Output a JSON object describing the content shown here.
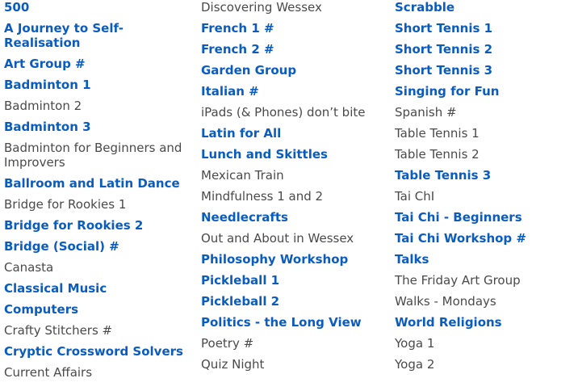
{
  "colors": {
    "link": "#0a5cbf",
    "text": "#4a4a4a"
  },
  "columns": [
    [
      {
        "label": "500",
        "link": true
      },
      {
        "label": "A Journey to Self-Realisation",
        "link": true
      },
      {
        "label": "Art Group #",
        "link": true
      },
      {
        "label": "Badminton 1",
        "link": true
      },
      {
        "label": "Badminton 2",
        "link": false
      },
      {
        "label": "Badminton 3",
        "link": true
      },
      {
        "label": "Badminton for Beginners and Improvers",
        "link": false
      },
      {
        "label": "Ballroom and Latin Dance",
        "link": true
      },
      {
        "label": "Bridge for Rookies 1",
        "link": false
      },
      {
        "label": "Bridge for Rookies 2",
        "link": true
      },
      {
        "label": "Bridge (Social) #",
        "link": true
      },
      {
        "label": "Canasta",
        "link": false
      },
      {
        "label": "Classical Music",
        "link": true
      },
      {
        "label": "Computers",
        "link": true
      },
      {
        "label": "Crafty Stitchers #",
        "link": false
      },
      {
        "label": "Cryptic Crossword Solvers",
        "link": true
      },
      {
        "label": "Current Affairs",
        "link": false
      }
    ],
    [
      {
        "label": "Discovering Wessex",
        "link": false
      },
      {
        "label": "French 1 #",
        "link": true
      },
      {
        "label": "French 2 #",
        "link": true
      },
      {
        "label": "Garden Group",
        "link": true
      },
      {
        "label": "Italian #",
        "link": true
      },
      {
        "label": "iPads (& Phones) don’t bite",
        "link": false
      },
      {
        "label": "Latin for All",
        "link": true
      },
      {
        "label": "Lunch and Skittles",
        "link": true
      },
      {
        "label": "Mexican Train",
        "link": false
      },
      {
        "label": "Mindfulness 1 and 2",
        "link": false
      },
      {
        "label": "Needlecrafts",
        "link": true
      },
      {
        "label": "Out and About in Wessex",
        "link": false
      },
      {
        "label": "Philosophy Workshop",
        "link": true
      },
      {
        "label": "Pickleball 1",
        "link": true
      },
      {
        "label": "Pickleball 2",
        "link": true
      },
      {
        "label": "Politics - the Long View",
        "link": true
      },
      {
        "label": "Poetry #",
        "link": false
      },
      {
        "label": "Quiz Night",
        "link": false
      }
    ],
    [
      {
        "label": "Scrabble",
        "link": true
      },
      {
        "label": "Short Tennis 1",
        "link": true
      },
      {
        "label": "Short Tennis 2",
        "link": true
      },
      {
        "label": "Short Tennis 3",
        "link": true
      },
      {
        "label": "Singing for Fun",
        "link": true
      },
      {
        "label": "Spanish #",
        "link": false
      },
      {
        "label": "Table Tennis 1",
        "link": false
      },
      {
        "label": "Table Tennis 2",
        "link": false
      },
      {
        "label": "Table Tennis 3",
        "link": true
      },
      {
        "label": "Tai ChI",
        "link": false
      },
      {
        "label": "Tai Chi - Beginners",
        "link": true
      },
      {
        "label": "Tai Chi Workshop #",
        "link": true
      },
      {
        "label": "Talks",
        "link": true
      },
      {
        "label": "The Friday Art Group",
        "link": false
      },
      {
        "label": "Walks - Mondays",
        "link": false
      },
      {
        "label": "World Religions",
        "link": true
      },
      {
        "label": "Yoga 1",
        "link": false
      },
      {
        "label": "Yoga 2",
        "link": false
      }
    ]
  ]
}
